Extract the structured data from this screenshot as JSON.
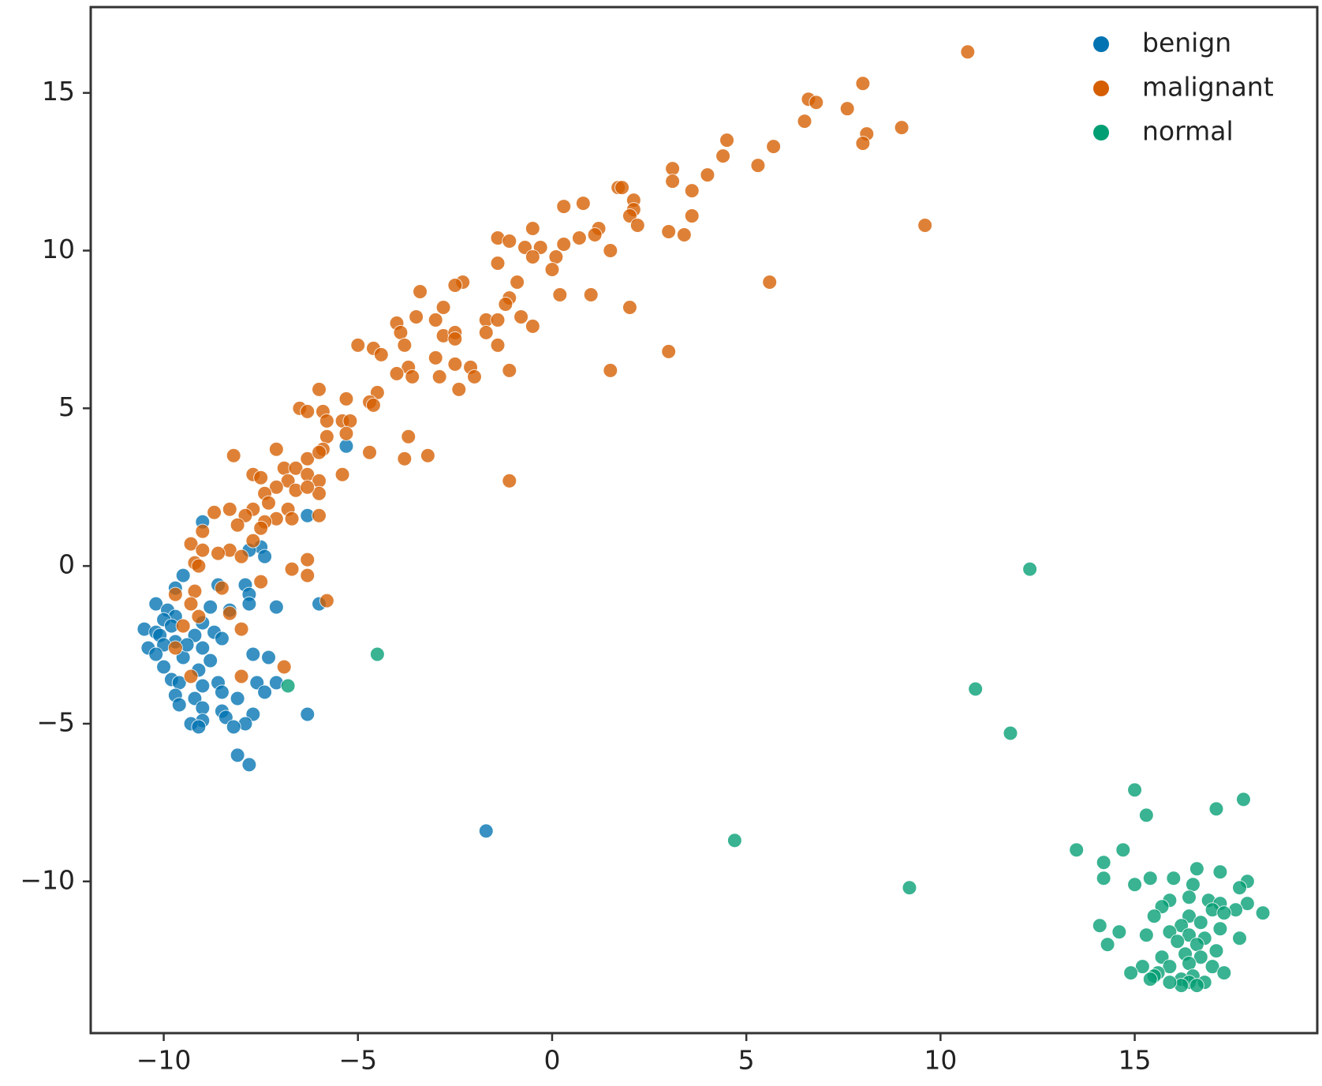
{
  "chart_data": {
    "type": "scatter",
    "xlim": [
      -11.88,
      19.7
    ],
    "ylim": [
      -14.81,
      17.72
    ],
    "xticks": [
      {
        "value": -10,
        "label": "−10"
      },
      {
        "value": -5,
        "label": "−5"
      },
      0,
      5,
      10,
      15
    ],
    "yticks": [
      {
        "value": -10,
        "label": "−10"
      },
      {
        "value": -5,
        "label": "−5"
      },
      0,
      5,
      10,
      15
    ],
    "legend": "upper right",
    "grid": false,
    "series": [
      {
        "name": "benign",
        "color": "#0173b2",
        "x": [
          -5.3,
          -9.0,
          -6.3,
          -7.5,
          -7.4,
          -7.8,
          -9.5,
          -8.6,
          -7.9,
          -9.7,
          -7.8,
          -10.2,
          -6.0,
          -7.1,
          -7.8,
          -8.8,
          -9.9,
          -8.3,
          -9.7,
          -10.0,
          -9.0,
          -10.5,
          -10.2,
          -9.2,
          -10.1,
          -8.7,
          -8.5,
          -9.7,
          -10.4,
          -10.0,
          -9.0,
          -10.2,
          -7.7,
          -9.5,
          -8.8,
          -7.3,
          -10.0,
          -9.1,
          -9.8,
          -8.6,
          -9.6,
          -7.1,
          -7.6,
          -9.0,
          -9.7,
          -8.5,
          -7.4,
          -9.2,
          -8.1,
          -9.6,
          -9.0,
          -6.3,
          -8.5,
          -7.7,
          -9.0,
          -9.3,
          -8.4,
          -7.9,
          -9.1,
          -8.2,
          -8.1,
          -7.8,
          -1.7,
          -9.8,
          -9.4
        ],
        "y": [
          3.8,
          1.4,
          1.6,
          0.6,
          0.3,
          0.5,
          -0.3,
          -0.6,
          -0.6,
          -0.7,
          -0.9,
          -1.2,
          -1.2,
          -1.3,
          -1.2,
          -1.3,
          -1.4,
          -1.4,
          -1.6,
          -1.7,
          -1.8,
          -2.0,
          -2.1,
          -2.2,
          -2.2,
          -2.1,
          -2.3,
          -2.4,
          -2.6,
          -2.5,
          -2.6,
          -2.8,
          -2.8,
          -2.9,
          -3.0,
          -2.9,
          -3.2,
          -3.3,
          -3.6,
          -3.7,
          -3.7,
          -3.7,
          -3.7,
          -3.8,
          -4.1,
          -4.0,
          -4.0,
          -4.2,
          -4.2,
          -4.4,
          -4.5,
          -4.7,
          -4.6,
          -4.7,
          -4.9,
          -5.0,
          -4.8,
          -5.0,
          -5.1,
          -5.1,
          -6.0,
          -6.3,
          -8.4,
          -1.9,
          -2.5
        ]
      },
      {
        "name": "malignant",
        "color": "#d55e00",
        "x": [
          10.7,
          8.0,
          6.6,
          6.8,
          7.6,
          6.5,
          9.0,
          8.1,
          8.0,
          4.5,
          5.7,
          4.4,
          5.3,
          4.0,
          3.1,
          3.1,
          3.6,
          1.7,
          1.8,
          2.1,
          0.3,
          0.8,
          2.1,
          2.0,
          3.6,
          2.2,
          9.6,
          -0.5,
          1.2,
          3.0,
          3.4,
          0.7,
          1.1,
          -1.4,
          -1.1,
          0.3,
          -0.7,
          -0.3,
          1.5,
          0.1,
          -0.5,
          -1.4,
          0.0,
          5.6,
          -2.3,
          -2.5,
          -0.9,
          -3.4,
          1.0,
          0.2,
          -1.1,
          -1.2,
          -2.8,
          2.0,
          -0.8,
          -3.5,
          -1.7,
          -1.4,
          -3.0,
          -4.0,
          -0.5,
          -1.7,
          -3.9,
          -2.8,
          -2.5,
          -2.5,
          -5.0,
          -4.6,
          -1.4,
          -3.8,
          -4.4,
          -3.0,
          -3.7,
          -2.5,
          -2.1,
          -3.6,
          -4.0,
          -2.0,
          -1.1,
          3.0,
          1.5,
          -2.9,
          -2.4,
          -6.0,
          -4.5,
          -5.3,
          -4.7,
          -4.6,
          -6.5,
          -6.3,
          -5.9,
          -5.4,
          -5.2,
          -5.8,
          -5.3,
          -3.7,
          -5.8,
          -5.9,
          -7.1,
          -4.7,
          -8.2,
          -3.2,
          -3.8,
          -6.3,
          -6.0,
          -6.9,
          -6.6,
          -7.7,
          -7.5,
          -5.4,
          -6.3,
          -6.0,
          -1.1,
          -6.8,
          -7.1,
          -7.4,
          -6.0,
          -6.6,
          -6.3,
          -7.3,
          -8.7,
          -8.3,
          -7.7,
          -6.8,
          -6.0,
          -6.7,
          -7.1,
          -7.9,
          -7.4,
          -8.1,
          -7.5,
          -9.0,
          -7.7,
          -9.3,
          -8.3,
          -8.6,
          -8.0,
          -9.0,
          -6.3,
          -9.2,
          -9.1,
          -6.7,
          -6.3,
          -7.5,
          -8.5,
          -9.2,
          -9.7,
          -5.8,
          -9.3,
          -8.3,
          -9.1,
          -9.5,
          -8.0,
          -9.7,
          -6.9,
          -9.3,
          -8.0
        ],
        "y": [
          16.3,
          15.3,
          14.8,
          14.7,
          14.5,
          14.1,
          13.9,
          13.7,
          13.4,
          13.5,
          13.3,
          13.0,
          12.7,
          12.4,
          12.6,
          12.2,
          11.9,
          12.0,
          12.0,
          11.6,
          11.4,
          11.5,
          11.3,
          11.1,
          11.1,
          10.8,
          10.8,
          10.7,
          10.7,
          10.6,
          10.5,
          10.4,
          10.5,
          10.4,
          10.3,
          10.2,
          10.1,
          10.1,
          10.0,
          9.8,
          9.8,
          9.6,
          9.4,
          9.0,
          9.0,
          8.9,
          9.0,
          8.7,
          8.6,
          8.6,
          8.5,
          8.3,
          8.2,
          8.2,
          7.9,
          7.9,
          7.8,
          7.8,
          7.8,
          7.7,
          7.6,
          7.4,
          7.4,
          7.3,
          7.4,
          7.2,
          7.0,
          6.9,
          7.0,
          7.0,
          6.7,
          6.6,
          6.3,
          6.4,
          6.3,
          6.0,
          6.1,
          6.0,
          6.2,
          6.8,
          6.2,
          6.0,
          5.6,
          5.6,
          5.5,
          5.3,
          5.2,
          5.1,
          5.0,
          4.9,
          4.9,
          4.6,
          4.6,
          4.6,
          4.2,
          4.1,
          4.1,
          3.7,
          3.7,
          3.6,
          3.5,
          3.5,
          3.4,
          3.4,
          3.6,
          3.1,
          3.1,
          2.9,
          2.8,
          2.9,
          2.9,
          2.7,
          2.7,
          2.7,
          2.5,
          2.3,
          2.3,
          2.4,
          2.5,
          2.0,
          1.7,
          1.8,
          1.8,
          1.8,
          1.6,
          1.5,
          1.5,
          1.6,
          1.4,
          1.3,
          1.2,
          1.1,
          0.8,
          0.7,
          0.5,
          0.4,
          0.3,
          0.5,
          0.2,
          0.1,
          0.0,
          -0.1,
          -0.3,
          -0.5,
          -0.7,
          -0.8,
          -0.9,
          -1.1,
          -1.2,
          -1.5,
          -1.6,
          -1.9,
          -2.0,
          -2.6,
          -3.2,
          -3.5,
          -3.5
        ]
      },
      {
        "name": "normal",
        "color": "#029e73",
        "x": [
          12.3,
          -4.5,
          -6.8,
          10.9,
          11.8,
          15.0,
          17.8,
          17.1,
          15.3,
          4.7,
          13.5,
          14.7,
          14.2,
          16.6,
          14.2,
          15.4,
          16.0,
          17.2,
          17.9,
          9.2,
          15.0,
          16.5,
          17.7,
          15.9,
          16.4,
          16.9,
          17.2,
          17.9,
          15.7,
          17.0,
          17.6,
          18.3,
          15.5,
          16.4,
          17.3,
          16.7,
          16.2,
          14.1,
          17.2,
          15.9,
          14.6,
          16.4,
          16.8,
          15.3,
          17.7,
          16.1,
          16.6,
          14.3,
          17.1,
          16.3,
          15.7,
          16.7,
          16.4,
          15.2,
          15.9,
          17.0,
          14.9,
          15.6,
          17.3,
          15.5,
          16.5,
          16.2,
          15.4,
          16.8,
          16.4,
          16.2,
          16.6,
          15.9
        ],
        "y": [
          -0.1,
          -2.8,
          -3.8,
          -3.9,
          -5.3,
          -7.1,
          -7.4,
          -7.7,
          -7.9,
          -8.7,
          -9.0,
          -9.0,
          -9.4,
          -9.6,
          -9.9,
          -9.9,
          -9.9,
          -9.7,
          -10.0,
          -10.2,
          -10.1,
          -10.1,
          -10.2,
          -10.6,
          -10.5,
          -10.6,
          -10.7,
          -10.7,
          -10.8,
          -10.9,
          -10.9,
          -11.0,
          -11.1,
          -11.1,
          -11.0,
          -11.3,
          -11.4,
          -11.4,
          -11.5,
          -11.6,
          -11.6,
          -11.7,
          -11.8,
          -11.7,
          -11.8,
          -11.9,
          -12.0,
          -12.0,
          -12.2,
          -12.3,
          -12.4,
          -12.4,
          -12.6,
          -12.7,
          -12.7,
          -12.7,
          -12.9,
          -12.9,
          -12.9,
          -13.0,
          -13.0,
          -13.1,
          -13.1,
          -13.2,
          -13.2,
          -13.3,
          -13.3,
          -13.2
        ]
      }
    ]
  }
}
